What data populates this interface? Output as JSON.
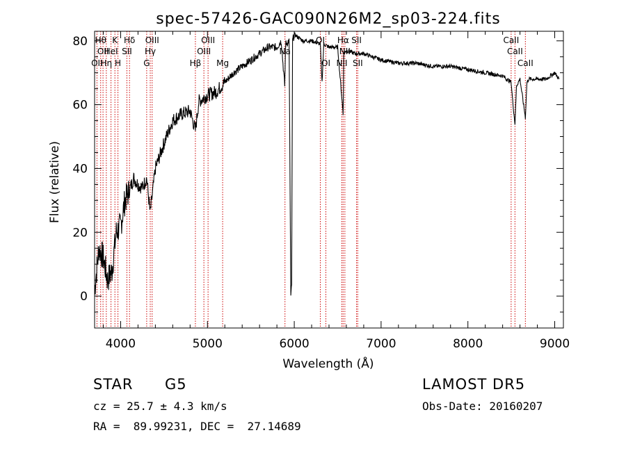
{
  "chart_data": {
    "type": "line",
    "title": "spec-57426-GAC090N26M2_sp03-224.fits",
    "xlabel": "Wavelength (Å)",
    "ylabel": "Flux (relative)",
    "xlim": [
      3700,
      9100
    ],
    "ylim": [
      -10,
      83
    ],
    "xticks": [
      4000,
      5000,
      6000,
      7000,
      8000,
      9000
    ],
    "yticks": [
      0,
      20,
      40,
      60,
      80
    ],
    "grid": false,
    "line_color": "#000000",
    "marker_color": "#cc0000",
    "series": [
      {
        "x": [
          3700,
          3750,
          3800,
          3850,
          3900,
          3950,
          4000,
          4050,
          4100,
          4150,
          4200,
          4250,
          4300,
          4340,
          4400,
          4500,
          4600,
          4700,
          4800,
          4861,
          4900,
          5000,
          5100,
          5200,
          5300,
          5400,
          5500,
          5600,
          5700,
          5800,
          5850,
          5890,
          5900,
          5940,
          5960,
          5970,
          5980,
          6000,
          6100,
          6200,
          6300,
          6320,
          6340,
          6400,
          6500,
          6563,
          6570,
          6600,
          6700,
          6800,
          6900,
          7000,
          7200,
          7400,
          7600,
          7800,
          8000,
          8200,
          8400,
          8498,
          8520,
          8542,
          8560,
          8600,
          8662,
          8680,
          8700,
          8800,
          8900,
          9000,
          9050
        ],
        "y": [
          2,
          15,
          12,
          5,
          8,
          20,
          22,
          30,
          33,
          37,
          35,
          34,
          37,
          26,
          40,
          48,
          55,
          57,
          58,
          52,
          61,
          63,
          64,
          67,
          70,
          72,
          74,
          76,
          78,
          78,
          80,
          66,
          79,
          80,
          0,
          3,
          80,
          82,
          80,
          80,
          79,
          67,
          79,
          78,
          78,
          57,
          76,
          77,
          76,
          76,
          75,
          74,
          73,
          73,
          72,
          72,
          71,
          70,
          69,
          67,
          60,
          54,
          66,
          68,
          56,
          67,
          68,
          68,
          68,
          70,
          68
        ]
      }
    ],
    "lines": [
      {
        "wave": 3727,
        "label": "OII",
        "row": 3
      },
      {
        "wave": 3770,
        "label": "Hθ",
        "row": 1
      },
      {
        "wave": 3797,
        "label": "OII",
        "row": 2
      },
      {
        "wave": 3835,
        "label": "Hη",
        "row": 3
      },
      {
        "wave": 3889,
        "label": "HeI",
        "row": 2
      },
      {
        "wave": 3934,
        "label": "K",
        "row": 1
      },
      {
        "wave": 3969,
        "label": "H",
        "row": 3
      },
      {
        "wave": 4072,
        "label": "SII",
        "row": 2
      },
      {
        "wave": 4102,
        "label": "Hδ",
        "row": 1
      },
      {
        "wave": 4300,
        "label": "G",
        "row": 3
      },
      {
        "wave": 4341,
        "label": "Hγ",
        "row": 2
      },
      {
        "wave": 4363,
        "label": "OIII",
        "row": 1
      },
      {
        "wave": 4861,
        "label": "Hβ",
        "row": 3
      },
      {
        "wave": 4959,
        "label": "OIII",
        "row": 2
      },
      {
        "wave": 5007,
        "label": "OIII",
        "row": 1
      },
      {
        "wave": 5175,
        "label": "Mg",
        "row": 3
      },
      {
        "wave": 5893,
        "label": "Na",
        "row": 2
      },
      {
        "wave": 6300,
        "label": "OI",
        "row": 1
      },
      {
        "wave": 6364,
        "label": "OI",
        "row": 3
      },
      {
        "wave": 6548,
        "label": "NII",
        "row": 3
      },
      {
        "wave": 6563,
        "label": "Hα",
        "row": 1
      },
      {
        "wave": 6583,
        "label": "NII",
        "row": 2
      },
      {
        "wave": 6717,
        "label": "SII",
        "row": 1
      },
      {
        "wave": 6731,
        "label": "SII",
        "row": 3
      },
      {
        "wave": 8498,
        "label": "CaII",
        "row": 1
      },
      {
        "wave": 8542,
        "label": "CaII",
        "row": 2
      },
      {
        "wave": 8662,
        "label": "CaII",
        "row": 3
      }
    ]
  },
  "info": {
    "object_class": "STAR",
    "subclass": "G5",
    "redshift": "cz = 25.7 ± 4.3 km/s",
    "coords": "RA =  89.99231, DEC =  27.14689",
    "survey": "LAMOST DR5",
    "obs_date": "Obs-Date: 20160207"
  }
}
